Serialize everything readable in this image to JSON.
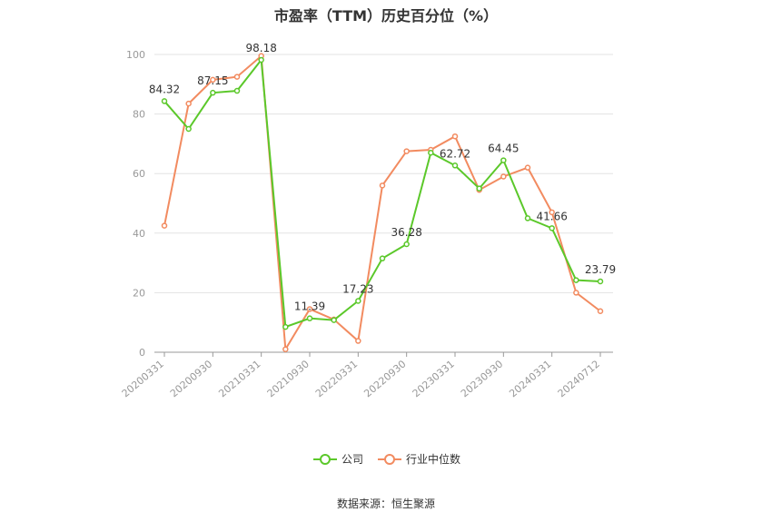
{
  "title": "市盈率（TTM）历史百分位（%）",
  "source": "数据来源：恒生聚源",
  "colors": {
    "company": "#5bc82a",
    "industry": "#f28b60",
    "grid": "#e3e3e3",
    "axis": "#999999",
    "label": "#333333"
  },
  "chart_data": {
    "type": "line",
    "title": "市盈率（TTM）历史百分位（%）",
    "xlabel": "",
    "ylabel": "",
    "ylim": [
      0,
      100
    ],
    "yticks": [
      0,
      20,
      40,
      60,
      80,
      100
    ],
    "grid": true,
    "legend_position": "bottom",
    "x": [
      "20200331",
      "20200630",
      "20200930",
      "20201231",
      "20210331",
      "20210630",
      "20210930",
      "20211231",
      "20220331",
      "20220630",
      "20220930",
      "20221231",
      "20230331",
      "20230630",
      "20230930",
      "20231231",
      "20240331",
      "20240630",
      "20240712"
    ],
    "x_tick_labels": [
      "20200331",
      "",
      "20200930",
      "",
      "20210331",
      "",
      "20210930",
      "",
      "20220331",
      "",
      "20220930",
      "",
      "20230331",
      "",
      "20230930",
      "",
      "20240331",
      "",
      "20240712"
    ],
    "series": [
      {
        "name": "公司",
        "values": [
          84.32,
          75.0,
          87.15,
          87.8,
          98.18,
          8.5,
          11.39,
          10.8,
          17.23,
          31.5,
          36.28,
          67.0,
          62.72,
          55.0,
          64.45,
          45.0,
          41.66,
          24.2,
          23.79
        ],
        "labels": [
          "84.32",
          "",
          "87.15",
          "",
          "98.18",
          "",
          "11.39",
          "",
          "17.23",
          "",
          "36.28",
          "",
          "62.72",
          "",
          "64.45",
          "",
          "41.66",
          "",
          "23.79"
        ]
      },
      {
        "name": "行业中位数",
        "values": [
          42.5,
          83.5,
          91.5,
          92.5,
          99.5,
          1.0,
          14.5,
          11.0,
          3.8,
          56.0,
          67.5,
          68.0,
          72.5,
          54.5,
          59.0,
          62.0,
          47.0,
          20.0,
          13.8
        ]
      }
    ]
  }
}
